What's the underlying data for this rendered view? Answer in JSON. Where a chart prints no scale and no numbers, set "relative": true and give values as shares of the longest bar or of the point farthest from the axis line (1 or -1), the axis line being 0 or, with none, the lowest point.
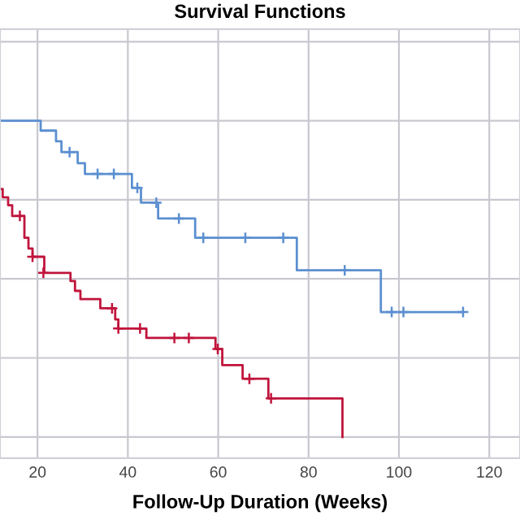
{
  "chart_data": {
    "type": "step",
    "title": "Survival Functions",
    "xlabel": "Follow-Up Duration (Weeks)",
    "relative": true,
    "grid": true,
    "tick_labels": "x",
    "xlim": [
      11.7,
      126.8
    ],
    "xticks": [
      20,
      40,
      60,
      80,
      100,
      120
    ],
    "series": [
      {
        "color": "#5b8fd0",
        "x": [
          11.7,
          20.7,
          24.1,
          25.3,
          28.9,
          30.5,
          40.9,
          42.9,
          46.7,
          54.9,
          77.4,
          96.0,
          114.2
        ],
        "values": [
          1,
          0.969,
          0.935,
          0.901,
          0.866,
          0.832,
          0.788,
          0.741,
          0.691,
          0.63,
          0.527,
          0.395,
          0.395
        ]
      },
      {
        "type": "scatter",
        "marker": "cross",
        "color": "#5b8fd0",
        "x": [
          27.1,
          33.3,
          36.9,
          42.1,
          46.3,
          51.3,
          56.7,
          66.0,
          74.4,
          88.0,
          98.4,
          101.0,
          114.2
        ],
        "values": [
          0.901,
          0.832,
          0.832,
          0.788,
          0.741,
          0.691,
          0.63,
          0.63,
          0.63,
          0.527,
          0.395,
          0.395,
          0.395
        ]
      },
      {
        "color": "#c0143c",
        "x": [
          11.7,
          12.3,
          13.5,
          14.4,
          17.1,
          18.0,
          18.9,
          21.5,
          27.3,
          28.3,
          29.5,
          33.9,
          37.2,
          37.9,
          44.1,
          59.4,
          60.9,
          65.4,
          71.1,
          87.5
        ],
        "values": [
          0.784,
          0.758,
          0.733,
          0.699,
          0.63,
          0.596,
          0.57,
          0.519,
          0.493,
          0.462,
          0.436,
          0.407,
          0.372,
          0.343,
          0.313,
          0.278,
          0.227,
          0.184,
          0.122,
          0
        ]
      },
      {
        "type": "scatter",
        "marker": "cross",
        "color": "#c0143c",
        "x": [
          16.1,
          18.9,
          21.3,
          36.5,
          37.9,
          42.7,
          50.3,
          53.5,
          59.9,
          66.9,
          71.7
        ],
        "values": [
          0.699,
          0.57,
          0.519,
          0.407,
          0.343,
          0.343,
          0.313,
          0.313,
          0.278,
          0.184,
          0.122
        ]
      }
    ]
  }
}
